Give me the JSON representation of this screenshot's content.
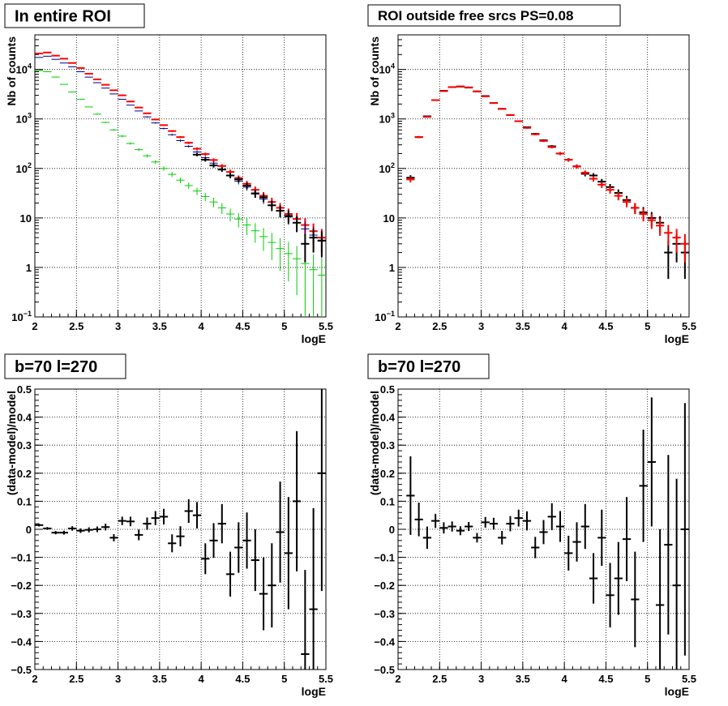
{
  "chart_data": [
    {
      "panel": "top-left",
      "type": "scatter",
      "title": "In entire ROI",
      "xlabel": "logE",
      "ylabel": "Nb of counts",
      "xlim": [
        2,
        5.5
      ],
      "ylim": [
        0.1,
        50000
      ],
      "y_scale": "log",
      "grid": true,
      "x_ticks": [
        "2",
        "2.5",
        "3",
        "3.5",
        "4",
        "4.5",
        "5",
        "5.5"
      ],
      "y_ticks": [
        {
          "value": 0.1,
          "base": "10",
          "exp": "−1"
        },
        {
          "value": 1,
          "text": "1"
        },
        {
          "value": 10,
          "text": "10"
        },
        {
          "value": 100,
          "base": "10",
          "exp": "2"
        },
        {
          "value": 1000,
          "base": "10",
          "exp": "3"
        },
        {
          "value": 10000,
          "base": "10",
          "exp": "4"
        }
      ],
      "x": [
        2.05,
        2.15,
        2.25,
        2.35,
        2.45,
        2.55,
        2.65,
        2.75,
        2.85,
        2.95,
        3.05,
        3.15,
        3.25,
        3.35,
        3.45,
        3.55,
        3.65,
        3.75,
        3.85,
        3.95,
        4.05,
        4.15,
        4.25,
        4.35,
        4.45,
        4.55,
        4.65,
        4.75,
        4.85,
        4.95,
        5.05,
        5.15,
        5.25,
        5.35,
        5.45
      ],
      "series": [
        {
          "color": "#ff0000",
          "values": [
            21000,
            22000,
            19000,
            16500,
            13500,
            10700,
            8200,
            6300,
            4900,
            3800,
            3000,
            2250,
            1700,
            1300,
            975,
            750,
            570,
            430,
            330,
            250,
            195,
            148,
            112,
            85,
            64,
            49,
            37,
            28,
            21,
            16,
            12,
            9.5,
            7.2,
            5.4,
            4
          ]
        },
        {
          "color": "#000080",
          "values": [
            17500,
            18500,
            16000,
            13500,
            11300,
            9000,
            7000,
            5400,
            4200,
            3200,
            2500,
            1900,
            1450,
            1100,
            830,
            640,
            480,
            365,
            280,
            215,
            165,
            128,
            96,
            73,
            55,
            42,
            32,
            24,
            18,
            14,
            10.5,
            8,
            6,
            4.5,
            3.4
          ]
        },
        {
          "color": "#00cc00",
          "values": [
            9500,
            9000,
            7000,
            5000,
            3500,
            2500,
            1750,
            1250,
            850,
            600,
            450,
            320,
            240,
            180,
            135,
            100,
            76,
            58,
            45,
            35,
            27,
            21,
            16,
            12,
            9.5,
            7.2,
            5.5,
            4.2,
            3.2,
            2.4,
            1.9,
            1.5,
            1.2,
            0.9,
            0.7
          ]
        },
        {
          "color": "#000000",
          "values": [
            null,
            null,
            null,
            null,
            null,
            null,
            null,
            null,
            null,
            null,
            null,
            null,
            null,
            null,
            null,
            null,
            null,
            null,
            null,
            190,
            150,
            115,
            95,
            72,
            60,
            45,
            31,
            26,
            18,
            14,
            11,
            8,
            3,
            4,
            3.5
          ]
        }
      ]
    },
    {
      "panel": "top-right",
      "type": "scatter",
      "title": "ROI outside free srcs PS=0.08",
      "xlabel": "logE",
      "ylabel": "Nb of counts",
      "xlim": [
        2,
        5.5
      ],
      "ylim": [
        0.1,
        50000
      ],
      "y_scale": "log",
      "grid": true,
      "x_ticks": [
        "2",
        "2.5",
        "3",
        "3.5",
        "4",
        "4.5",
        "5",
        "5.5"
      ],
      "y_ticks": [
        {
          "value": 0.1,
          "base": "10",
          "exp": "−1"
        },
        {
          "value": 1,
          "text": "1"
        },
        {
          "value": 10,
          "text": "10"
        },
        {
          "value": 100,
          "base": "10",
          "exp": "2"
        },
        {
          "value": 1000,
          "base": "10",
          "exp": "3"
        },
        {
          "value": 10000,
          "base": "10",
          "exp": "4"
        }
      ],
      "x": [
        2.15,
        2.25,
        2.35,
        2.45,
        2.55,
        2.65,
        2.75,
        2.85,
        2.95,
        3.05,
        3.15,
        3.25,
        3.35,
        3.45,
        3.55,
        3.65,
        3.75,
        3.85,
        3.95,
        4.05,
        4.15,
        4.25,
        4.35,
        4.45,
        4.55,
        4.65,
        4.75,
        4.85,
        4.95,
        5.05,
        5.15,
        5.25,
        5.35,
        5.45
      ],
      "series": [
        {
          "color": "#000000",
          "values": [
            65,
            430,
            1130,
            2400,
            3700,
            4400,
            4500,
            4300,
            3600,
            2900,
            2100,
            1600,
            1200,
            900,
            680,
            500,
            370,
            280,
            200,
            150,
            110,
            78,
            72,
            54,
            42,
            32,
            23,
            16,
            13,
            10,
            8,
            2,
            3,
            2
          ]
        },
        {
          "color": "#ff0000",
          "values": [
            60,
            430,
            1100,
            2400,
            3650,
            4400,
            4550,
            4350,
            3600,
            2850,
            2100,
            1600,
            1200,
            900,
            660,
            490,
            360,
            270,
            200,
            150,
            110,
            82,
            62,
            47,
            37,
            28,
            21,
            16,
            12,
            9,
            7,
            5,
            4,
            3
          ]
        }
      ]
    },
    {
      "panel": "bottom-left",
      "type": "scatter",
      "title": "b=70 l=270",
      "xlabel": "logE",
      "ylabel": "(data-model)/model",
      "xlim": [
        2,
        5.5
      ],
      "ylim": [
        -0.5,
        0.5
      ],
      "grid": true,
      "x_ticks": [
        "2",
        "2.5",
        "3",
        "3.5",
        "4",
        "4.5",
        "5",
        "5.5"
      ],
      "y_ticks": [
        "−0.5",
        "−0.4",
        "−0.3",
        "−0.2",
        "−0.1",
        "0",
        "0.1",
        "0.2",
        "0.3",
        "0.4",
        "0.5"
      ],
      "y_tick_values": [
        -0.5,
        -0.4,
        -0.3,
        -0.2,
        -0.1,
        0,
        0.1,
        0.2,
        0.3,
        0.4,
        0.5
      ],
      "x": [
        2.05,
        2.15,
        2.25,
        2.35,
        2.45,
        2.55,
        2.65,
        2.75,
        2.85,
        2.95,
        3.05,
        3.15,
        3.25,
        3.35,
        3.45,
        3.55,
        3.65,
        3.75,
        3.85,
        3.95,
        4.05,
        4.15,
        4.25,
        4.35,
        4.45,
        4.55,
        4.65,
        4.75,
        4.85,
        4.95,
        5.05,
        5.15,
        5.25,
        5.35,
        5.45
      ],
      "values": [
        0.015,
        0.003,
        -0.012,
        -0.012,
        0.003,
        -0.005,
        -0.002,
        0.0,
        0.008,
        -0.03,
        0.03,
        0.028,
        -0.02,
        0.02,
        0.04,
        0.045,
        -0.05,
        -0.025,
        0.065,
        0.05,
        -0.105,
        -0.04,
        0.02,
        -0.16,
        -0.065,
        -0.04,
        -0.11,
        -0.23,
        -0.2,
        -0.01,
        -0.085,
        0.1,
        -0.445,
        -0.285,
        0.2
      ],
      "errors": [
        0.005,
        0.005,
        0.006,
        0.007,
        0.008,
        0.008,
        0.009,
        0.01,
        0.012,
        0.013,
        0.015,
        0.017,
        0.019,
        0.022,
        0.025,
        0.028,
        0.032,
        0.036,
        0.042,
        0.047,
        0.055,
        0.062,
        0.07,
        0.08,
        0.09,
        0.1,
        0.11,
        0.13,
        0.15,
        0.18,
        0.2,
        0.25,
        0.3,
        0.36,
        0.42
      ]
    },
    {
      "panel": "bottom-right",
      "type": "scatter",
      "title": "b=70 l=270",
      "xlabel": "logE",
      "ylabel": "(data-model)/model",
      "xlim": [
        2,
        5.5
      ],
      "ylim": [
        -0.5,
        0.5
      ],
      "grid": true,
      "x_ticks": [
        "2",
        "2.5",
        "3",
        "3.5",
        "4",
        "4.5",
        "5",
        "5.5"
      ],
      "y_ticks": [
        "−0.5",
        "−0.4",
        "−0.3",
        "−0.2",
        "−0.1",
        "0",
        "0.1",
        "0.2",
        "0.3",
        "0.4",
        "0.5"
      ],
      "y_tick_values": [
        -0.5,
        -0.4,
        -0.3,
        -0.2,
        -0.1,
        0,
        0.1,
        0.2,
        0.3,
        0.4,
        0.5
      ],
      "x": [
        2.15,
        2.25,
        2.35,
        2.45,
        2.55,
        2.65,
        2.75,
        2.85,
        2.95,
        3.05,
        3.15,
        3.25,
        3.35,
        3.45,
        3.55,
        3.65,
        3.75,
        3.85,
        3.95,
        4.05,
        4.15,
        4.25,
        4.35,
        4.45,
        4.55,
        4.65,
        4.75,
        4.85,
        4.95,
        5.05,
        5.15,
        5.25,
        5.35,
        5.45
      ],
      "values": [
        0.12,
        0.035,
        -0.03,
        0.03,
        0.005,
        0.01,
        -0.005,
        0.01,
        -0.03,
        0.025,
        0.02,
        -0.03,
        0.02,
        0.04,
        0.03,
        -0.065,
        -0.01,
        0.045,
        0.01,
        -0.085,
        -0.045,
        0.01,
        -0.175,
        -0.03,
        -0.235,
        -0.175,
        -0.035,
        -0.25,
        0.155,
        0.24,
        -0.27,
        -0.055,
        -0.2,
        0.0
      ],
      "errors": [
        0.14,
        0.06,
        0.04,
        0.025,
        0.02,
        0.018,
        0.016,
        0.016,
        0.017,
        0.019,
        0.021,
        0.024,
        0.027,
        0.03,
        0.034,
        0.038,
        0.043,
        0.048,
        0.055,
        0.062,
        0.07,
        0.08,
        0.09,
        0.1,
        0.115,
        0.13,
        0.15,
        0.17,
        0.2,
        0.23,
        0.27,
        0.32,
        0.38,
        0.45
      ]
    }
  ]
}
